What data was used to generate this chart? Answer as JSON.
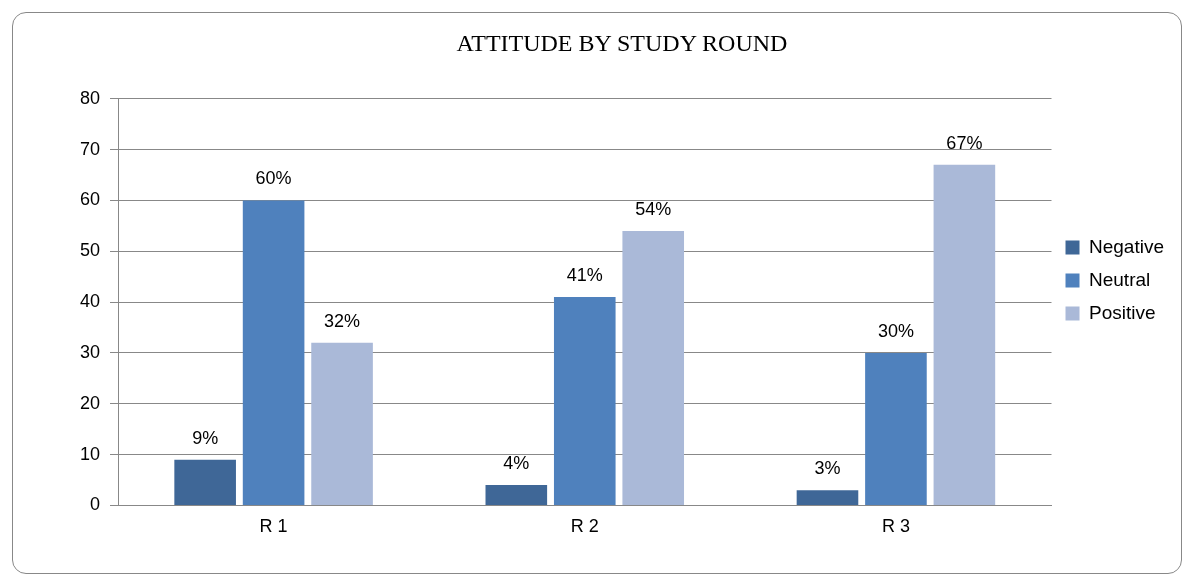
{
  "chart_data": {
    "type": "bar",
    "title": "ATTITUDE BY STUDY ROUND",
    "categories": [
      "R 1",
      "R 2",
      "R 3"
    ],
    "series": [
      {
        "name": "Negative",
        "color": "#3f6797",
        "values": [
          9,
          4,
          3
        ],
        "value_labels": [
          "9%",
          "4%",
          "3%"
        ]
      },
      {
        "name": "Neutral",
        "color": "#4f81bd",
        "values": [
          60,
          41,
          30
        ],
        "value_labels": [
          "60%",
          "41%",
          "30%"
        ]
      },
      {
        "name": "Positive",
        "color": "#aab9d8",
        "values": [
          32,
          54,
          67
        ],
        "value_labels": [
          "32%",
          "54%",
          "67%"
        ]
      }
    ],
    "ylim": [
      0,
      80
    ],
    "yticks": [
      0,
      10,
      20,
      30,
      40,
      50,
      60,
      70,
      80
    ],
    "grid": "y",
    "legend": "right"
  }
}
